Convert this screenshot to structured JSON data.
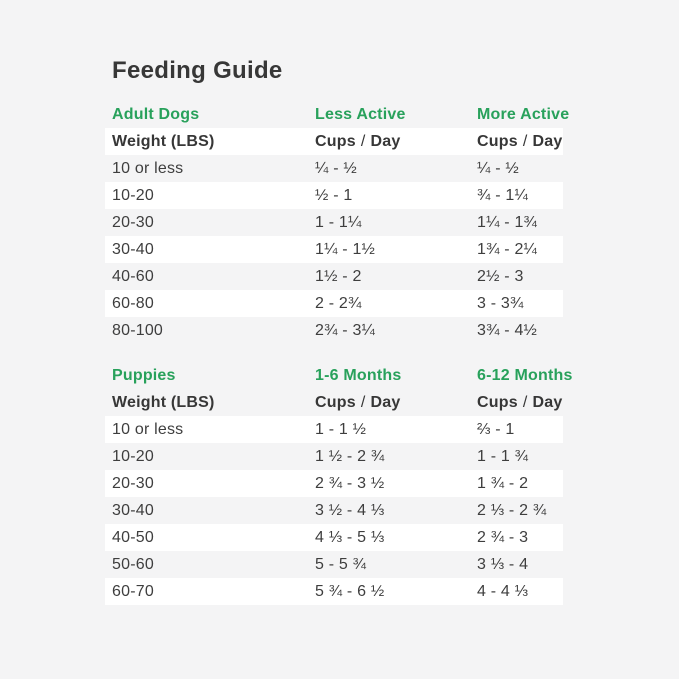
{
  "page": {
    "title": "Feeding Guide"
  },
  "colors": {
    "background": "#f4f4f5",
    "row_highlight": "#ffffff",
    "accent_green": "#28a15b",
    "text": "#3e3e3e",
    "heading_text": "#373737"
  },
  "sections": [
    {
      "name": "Adult Dogs",
      "col2_header": "Less Active",
      "col3_header": "More Active",
      "weight_label": "Weight (LBS)",
      "cups": "Cups",
      "slash": "/",
      "day": "Day",
      "rows": [
        {
          "weight": "10 or less",
          "col2": "¼ - ½",
          "col3": "¼ - ½"
        },
        {
          "weight": "10-20",
          "col2": "½ - 1",
          "col3": "¾ - 1¼"
        },
        {
          "weight": "20-30",
          "col2": "1 - 1¼",
          "col3": "1¼ - 1¾"
        },
        {
          "weight": "30-40",
          "col2": "1¼ - 1½",
          "col3": "1¾ - 2¼"
        },
        {
          "weight": "40-60",
          "col2": "1½ - 2",
          "col3": "2½ - 3"
        },
        {
          "weight": "60-80",
          "col2": "2 - 2¾",
          "col3": "3 - 3¾"
        },
        {
          "weight": "80-100",
          "col2": "2¾ - 3¼",
          "col3": "3¾ - 4½"
        }
      ]
    },
    {
      "name": "Puppies",
      "col2_header": "1-6 Months",
      "col3_header": "6-12 Months",
      "weight_label": "Weight (LBS)",
      "cups": "Cups",
      "slash": "/",
      "day": "Day",
      "rows": [
        {
          "weight": "10 or less",
          "col2": "1 - 1 ½",
          "col3": "⅔ - 1"
        },
        {
          "weight": "10-20",
          "col2": "1 ½ - 2 ¾",
          "col3": "1 - 1 ¾"
        },
        {
          "weight": "20-30",
          "col2": "2 ¾ - 3 ½",
          "col3": "1 ¾ - 2"
        },
        {
          "weight": "30-40",
          "col2": "3 ½ - 4 ⅓",
          "col3": "2 ⅓ - 2 ¾"
        },
        {
          "weight": "40-50",
          "col2": "4 ⅓ - 5 ⅓",
          "col3": "2 ¾ - 3"
        },
        {
          "weight": "50-60",
          "col2": "5 - 5 ¾",
          "col3": "3 ⅓ - 4"
        },
        {
          "weight": "60-70",
          "col2": "5 ¾ - 6 ½",
          "col3": "4 - 4 ⅓"
        }
      ]
    }
  ]
}
